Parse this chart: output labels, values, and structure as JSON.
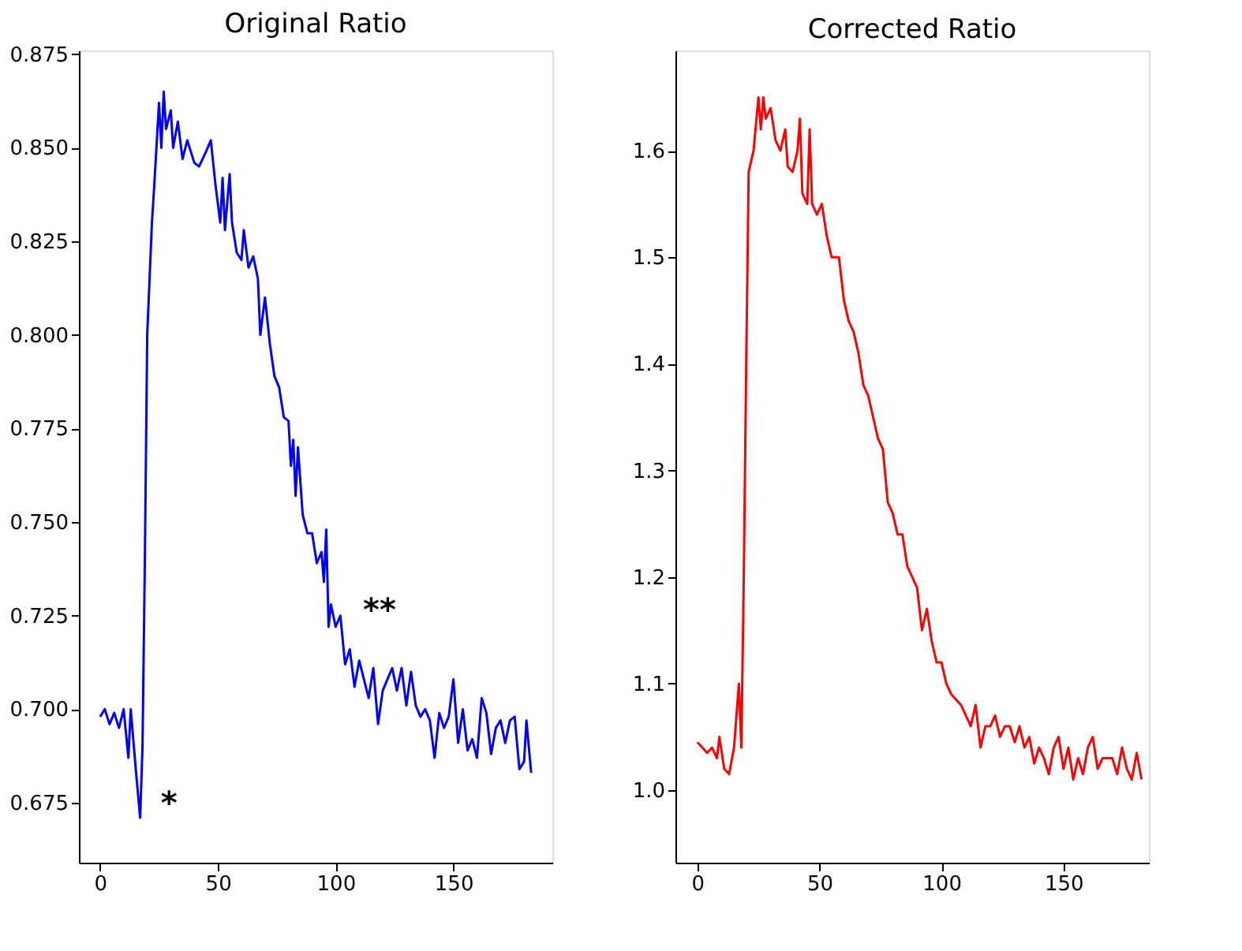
{
  "chart_data": [
    {
      "type": "line",
      "title": "Original Ratio",
      "xlim": [
        -9,
        192
      ],
      "ylim": [
        0.659,
        0.876
      ],
      "xticks": [
        0,
        50,
        100,
        150
      ],
      "yticks": [
        0.675,
        {
          "value": 0.7,
          "label": "0.700"
        },
        0.725,
        {
          "value": 0.75,
          "label": "0.750"
        },
        0.775,
        {
          "value": 0.8,
          "label": "0.800"
        },
        0.825,
        {
          "value": 0.85,
          "label": "0.850"
        },
        0.875
      ],
      "grid": false,
      "line_style": "solid",
      "annotations": [
        "*",
        "**"
      ],
      "x": [
        0,
        2,
        4,
        6,
        8,
        10,
        12,
        13,
        15,
        17,
        18,
        19,
        20,
        22,
        23,
        25,
        26,
        27,
        28,
        30,
        31,
        33,
        35,
        37,
        40,
        42,
        45,
        47,
        49,
        51,
        52,
        53,
        55,
        56,
        58,
        60,
        61,
        63,
        65,
        67,
        68,
        70,
        72,
        74,
        76,
        78,
        80,
        81,
        82,
        83,
        84,
        86,
        88,
        90,
        92,
        94,
        95,
        96,
        97,
        98,
        100,
        102,
        104,
        106,
        108,
        110,
        112,
        114,
        116,
        118,
        120,
        122,
        124,
        126,
        128,
        130,
        132,
        134,
        136,
        138,
        140,
        142,
        144,
        146,
        148,
        150,
        152,
        154,
        156,
        158,
        160,
        162,
        164,
        166,
        168,
        170,
        172,
        174,
        176,
        178,
        180,
        181,
        183
      ],
      "series": [
        {
          "color": "#0000ff",
          "values": [
            0.698,
            0.7,
            0.696,
            0.699,
            0.695,
            0.7,
            0.687,
            0.7,
            0.685,
            0.671,
            0.69,
            0.74,
            0.8,
            0.83,
            0.84,
            0.862,
            0.85,
            0.865,
            0.855,
            0.86,
            0.85,
            0.857,
            0.847,
            0.852,
            0.846,
            0.845,
            0.849,
            0.852,
            0.84,
            0.83,
            0.842,
            0.828,
            0.843,
            0.83,
            0.822,
            0.82,
            0.828,
            0.818,
            0.821,
            0.815,
            0.8,
            0.81,
            0.798,
            0.789,
            0.786,
            0.778,
            0.777,
            0.765,
            0.772,
            0.757,
            0.77,
            0.752,
            0.747,
            0.747,
            0.739,
            0.742,
            0.734,
            0.748,
            0.722,
            0.728,
            0.722,
            0.725,
            0.712,
            0.716,
            0.706,
            0.713,
            0.708,
            0.703,
            0.711,
            0.696,
            0.705,
            0.708,
            0.711,
            0.705,
            0.711,
            0.701,
            0.71,
            0.701,
            0.698,
            0.7,
            0.697,
            0.687,
            0.699,
            0.695,
            0.698,
            0.708,
            0.691,
            0.7,
            0.689,
            0.692,
            0.687,
            0.703,
            0.699,
            0.688,
            0.695,
            0.697,
            0.691,
            0.697,
            0.698,
            0.684,
            0.686,
            0.697,
            0.683
          ]
        }
      ]
    },
    {
      "type": "line",
      "title": "Corrected Ratio",
      "xlim": [
        -9,
        185
      ],
      "ylim": [
        0.932,
        1.694
      ],
      "xticks": [
        0,
        50,
        100,
        150
      ],
      "yticks": [
        {
          "value": 1.0,
          "label": "1.0"
        },
        1.1,
        1.2,
        1.3,
        1.4,
        1.5,
        1.6
      ],
      "grid": false,
      "line_style": "solid",
      "x": [
        0,
        2,
        4,
        6,
        8,
        9,
        11,
        13,
        15,
        16,
        17,
        18,
        19,
        20,
        21,
        23,
        25,
        26,
        27,
        28,
        30,
        32,
        34,
        36,
        37,
        39,
        41,
        42,
        43,
        45,
        46,
        47,
        49,
        51,
        53,
        55,
        57,
        58,
        60,
        62,
        64,
        66,
        68,
        70,
        72,
        74,
        76,
        78,
        80,
        82,
        84,
        86,
        88,
        90,
        92,
        94,
        96,
        98,
        100,
        102,
        104,
        106,
        108,
        110,
        112,
        114,
        116,
        118,
        120,
        122,
        124,
        126,
        128,
        130,
        132,
        134,
        136,
        138,
        140,
        142,
        144,
        146,
        148,
        150,
        152,
        154,
        156,
        158,
        160,
        162,
        164,
        166,
        168,
        170,
        172,
        174,
        176,
        178,
        180,
        182
      ],
      "series": [
        {
          "color": "#ff0000",
          "values": [
            1.045,
            1.04,
            1.035,
            1.04,
            1.03,
            1.05,
            1.02,
            1.015,
            1.04,
            1.07,
            1.1,
            1.04,
            1.2,
            1.4,
            1.58,
            1.6,
            1.65,
            1.62,
            1.65,
            1.63,
            1.64,
            1.61,
            1.6,
            1.62,
            1.585,
            1.58,
            1.6,
            1.63,
            1.56,
            1.55,
            1.62,
            1.55,
            1.54,
            1.55,
            1.52,
            1.5,
            1.5,
            1.5,
            1.46,
            1.44,
            1.43,
            1.41,
            1.38,
            1.37,
            1.35,
            1.33,
            1.32,
            1.27,
            1.26,
            1.24,
            1.24,
            1.21,
            1.2,
            1.19,
            1.15,
            1.17,
            1.14,
            1.12,
            1.12,
            1.1,
            1.09,
            1.085,
            1.08,
            1.07,
            1.06,
            1.08,
            1.04,
            1.06,
            1.06,
            1.07,
            1.05,
            1.06,
            1.06,
            1.045,
            1.06,
            1.04,
            1.05,
            1.025,
            1.04,
            1.03,
            1.015,
            1.04,
            1.05,
            1.02,
            1.04,
            1.01,
            1.03,
            1.015,
            1.04,
            1.05,
            1.02,
            1.03,
            1.03,
            1.03,
            1.015,
            1.04,
            1.02,
            1.01,
            1.035,
            1.01
          ]
        }
      ]
    }
  ]
}
